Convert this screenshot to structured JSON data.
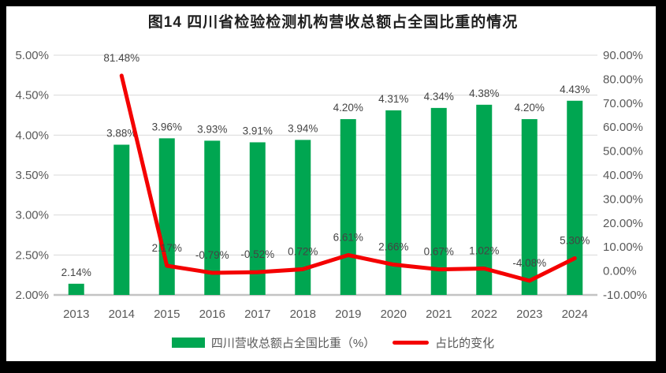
{
  "title": "图14  四川省检验检测机构营收总额占全国比重的情况",
  "colors": {
    "bar": "#00A651",
    "line": "#F40000",
    "grid": "#D9D9D9",
    "axis_line": "#C3C3C3",
    "tick_text": "#595959",
    "data_label_text": "#444444",
    "title_text": "#1F1F1F",
    "border": "#000000",
    "background": "#FFFFFF"
  },
  "chart_data": {
    "type": "combo",
    "title": "图14  四川省检验检测机构营收总额占全国比重的情况",
    "categories": [
      "2013",
      "2014",
      "2015",
      "2016",
      "2017",
      "2018",
      "2019",
      "2020",
      "2021",
      "2022",
      "2023",
      "2024"
    ],
    "series": [
      {
        "name": "四川营收总额占全国比重（%）",
        "type": "bar",
        "axis": "left",
        "color": "#00A651",
        "values": [
          2.14,
          3.88,
          3.96,
          3.93,
          3.91,
          3.94,
          4.2,
          4.31,
          4.34,
          4.38,
          4.2,
          4.43
        ],
        "labels": [
          "2.14%",
          "3.88%",
          "3.96%",
          "3.93%",
          "3.91%",
          "3.94%",
          "4.20%",
          "4.31%",
          "4.34%",
          "4.38%",
          "4.20%",
          "4.43%"
        ]
      },
      {
        "name": "占比的变化",
        "type": "line",
        "axis": "right",
        "color": "#F40000",
        "values": [
          null,
          81.48,
          2.17,
          -0.79,
          -0.52,
          0.72,
          6.61,
          2.66,
          0.67,
          1.02,
          -4.08,
          5.3
        ],
        "labels": [
          null,
          "81.48%",
          "2.17%",
          "-0.79%",
          "-0.52%",
          "0.72%",
          "6.61%",
          "2.66%",
          "0.67%",
          "1.02%",
          "-4.08%",
          "5.30%"
        ]
      }
    ],
    "left_axis": {
      "min": 2.0,
      "max": 5.0,
      "step": 0.5,
      "tick_values": [
        5.0,
        4.5,
        4.0,
        3.5,
        3.0,
        2.5,
        2.0
      ],
      "tick_labels": [
        "5.00%",
        "4.50%",
        "4.00%",
        "3.50%",
        "3.00%",
        "2.50%",
        "2.00%"
      ]
    },
    "right_axis": {
      "min": -10,
      "max": 90,
      "step": 10,
      "tick_values": [
        90,
        80,
        70,
        60,
        50,
        40,
        30,
        20,
        10,
        0,
        -10
      ],
      "tick_labels": [
        "90.00%",
        "80.00%",
        "70.00%",
        "60.00%",
        "50.00%",
        "40.00%",
        "30.00%",
        "20.00%",
        "10.00%",
        "0.00%",
        "-10.00%"
      ]
    },
    "grid": true,
    "legend_position": "bottom"
  },
  "legend": {
    "items": [
      {
        "label": "四川营收总额占全国比重（%）",
        "swatch": "bar",
        "color": "#00A651"
      },
      {
        "label": "占比的变化",
        "swatch": "line",
        "color": "#F40000"
      }
    ]
  }
}
